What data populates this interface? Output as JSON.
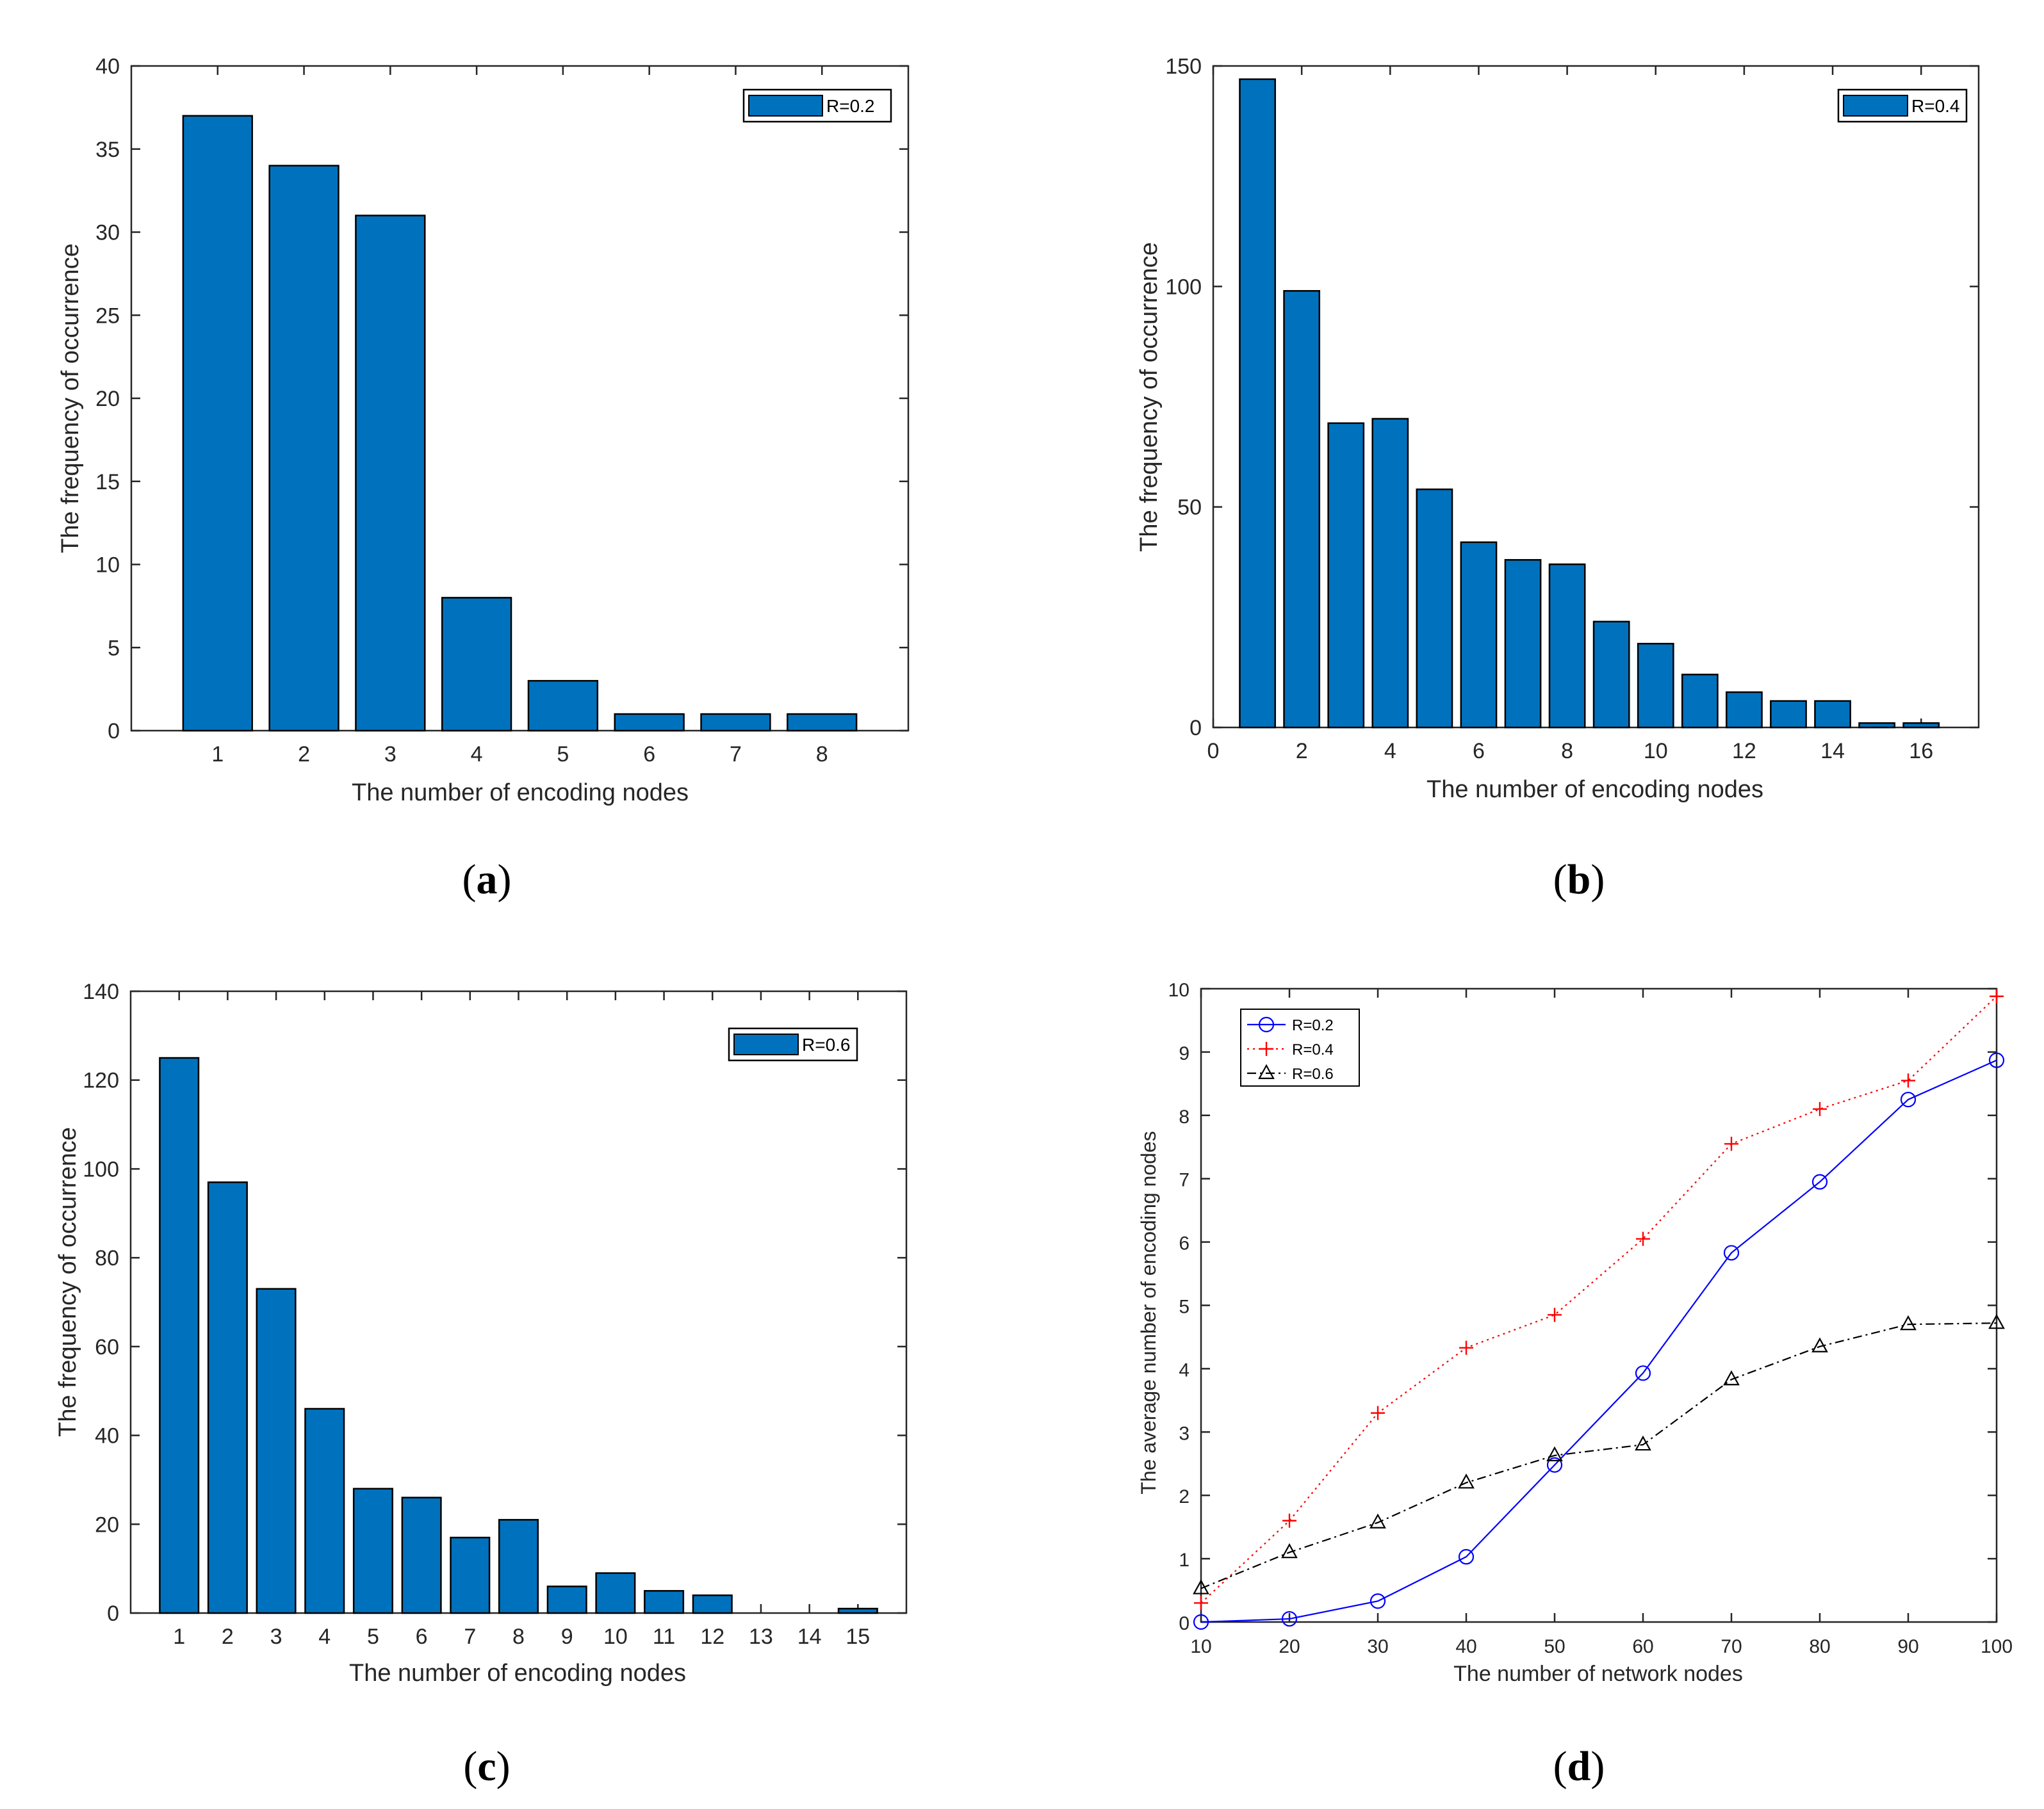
{
  "colors": {
    "bar_fill": "#0072BD",
    "bar_edge": "#000000",
    "axis": "#262626",
    "r02_line": "#0000FF",
    "r04_line": "#FF0000",
    "r06_line": "#000000"
  },
  "chart_data": [
    {
      "id": "a",
      "type": "bar",
      "caption_letter": "a",
      "xlabel": "The number of encoding nodes",
      "ylabel": "The frequency of occurrence",
      "legend": "R=0.2",
      "legend_position": "top-right",
      "xlim": [
        0,
        9
      ],
      "ylim": [
        0,
        40
      ],
      "xticks": [
        1,
        2,
        3,
        4,
        5,
        6,
        7,
        8
      ],
      "yticks": [
        0,
        5,
        10,
        15,
        20,
        25,
        30,
        35,
        40
      ],
      "bar_width": 0.8,
      "x": [
        1,
        2,
        3,
        4,
        5,
        6,
        7,
        8
      ],
      "values": [
        37,
        34,
        31,
        8,
        3,
        1,
        1,
        1
      ]
    },
    {
      "id": "b",
      "type": "bar",
      "caption_letter": "b",
      "xlabel": "The number of encoding nodes",
      "ylabel": "The frequency of occurrence",
      "legend": "R=0.4",
      "legend_position": "top-right",
      "xlim": [
        0,
        17.3
      ],
      "ylim": [
        0,
        150
      ],
      "xticks": [
        0,
        2,
        4,
        6,
        8,
        10,
        12,
        14,
        16
      ],
      "yticks": [
        0,
        50,
        100,
        150
      ],
      "bar_width": 0.8,
      "x": [
        1,
        2,
        3,
        4,
        5,
        6,
        7,
        8,
        9,
        10,
        11,
        12,
        13,
        14,
        15,
        16
      ],
      "values": [
        147,
        99,
        69,
        70,
        54,
        42,
        38,
        37,
        24,
        19,
        12,
        8,
        6,
        6,
        1,
        1
      ]
    },
    {
      "id": "c",
      "type": "bar",
      "caption_letter": "c",
      "xlabel": "The number of encoding nodes",
      "ylabel": "The frequency of occurrence",
      "legend": "R=0.6",
      "legend_position": "top-right",
      "xlim": [
        0,
        16
      ],
      "ylim": [
        0,
        140
      ],
      "xticks": [
        1,
        2,
        3,
        4,
        5,
        6,
        7,
        8,
        9,
        10,
        11,
        12,
        13,
        14,
        15
      ],
      "yticks": [
        0,
        20,
        40,
        60,
        80,
        100,
        120,
        140
      ],
      "bar_width": 0.8,
      "x": [
        1,
        2,
        3,
        4,
        5,
        6,
        7,
        8,
        9,
        10,
        11,
        12,
        13,
        14,
        15
      ],
      "values": [
        125,
        97,
        73,
        46,
        28,
        26,
        17,
        21,
        6,
        9,
        5,
        4,
        0,
        0,
        1
      ]
    },
    {
      "id": "d",
      "type": "line",
      "caption_letter": "d",
      "xlabel": "The number of network nodes",
      "ylabel": "The average number of encoding nodes",
      "legend_position": "top-left",
      "xlim": [
        10,
        100
      ],
      "ylim": [
        0,
        10
      ],
      "xticks": [
        10,
        20,
        30,
        40,
        50,
        60,
        70,
        80,
        90,
        100
      ],
      "yticks": [
        0,
        1,
        2,
        3,
        4,
        5,
        6,
        7,
        8,
        9,
        10
      ],
      "x": [
        10,
        20,
        30,
        40,
        50,
        60,
        70,
        80,
        90,
        100
      ],
      "series": [
        {
          "name": "R=0.2",
          "marker": "circle",
          "style": "solid",
          "color": "#0000FF",
          "values": [
            0.0,
            0.05,
            0.33,
            1.03,
            2.48,
            3.93,
            5.83,
            6.95,
            8.25,
            8.87
          ]
        },
        {
          "name": "R=0.4",
          "marker": "plus",
          "style": "dotted",
          "color": "#FF0000",
          "values": [
            0.3,
            1.6,
            3.3,
            4.33,
            4.85,
            6.05,
            7.55,
            8.1,
            8.55,
            9.88
          ]
        },
        {
          "name": "R=0.6",
          "marker": "triangle",
          "style": "dashdot",
          "color": "#000000",
          "values": [
            0.53,
            1.1,
            1.57,
            2.2,
            2.63,
            2.8,
            3.83,
            4.35,
            4.7,
            4.72
          ]
        }
      ]
    }
  ]
}
